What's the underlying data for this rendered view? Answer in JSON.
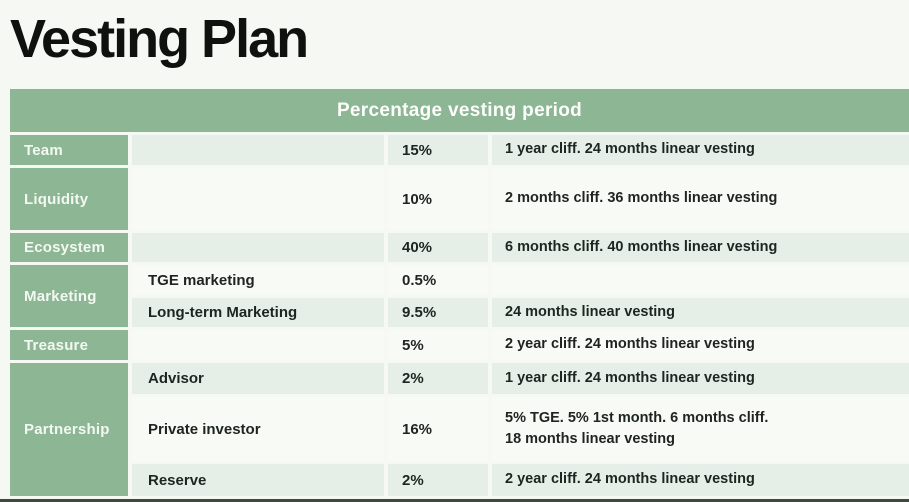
{
  "title": "Vesting Plan",
  "table": {
    "header": "Percentage vesting period",
    "groups": [
      "Team",
      "Liquidity",
      "Ecosystem",
      "Marketing",
      "Treasure",
      "Partnership"
    ],
    "rows": [
      {
        "sub": "",
        "pct": "15%",
        "details": "1 year cliff. 24 months linear vesting"
      },
      {
        "sub": "",
        "pct": "10%",
        "details": "2 months cliff. 36 months linear vesting"
      },
      {
        "sub": "",
        "pct": "40%",
        "details": "6 months cliff. 40 months linear vesting"
      },
      {
        "sub": "TGE marketing",
        "pct": "0.5%",
        "details": ""
      },
      {
        "sub": "Long-term Marketing",
        "pct": "9.5%",
        "details": "24 months linear vesting"
      },
      {
        "sub": "",
        "pct": "5%",
        "details": "2 year cliff. 24 months linear vesting"
      },
      {
        "sub": "Advisor",
        "pct": "2%",
        "details": "1 year cliff. 24 months linear vesting"
      },
      {
        "sub": "Private investor",
        "pct": "16%",
        "details": "5% TGE. 5% 1st month. 6 months cliff.\n18 months linear vesting"
      },
      {
        "sub": "Reserve",
        "pct": "2%",
        "details": "2 year cliff. 24 months linear vesting"
      }
    ]
  },
  "colors": {
    "accent_green": "#8cb694",
    "stripe_light_green": "#e6efe7",
    "stripe_white": "#f7faf5",
    "page_background": "#f6f9f3",
    "text_dark": "#1e2420",
    "header_text": "#fdfefc",
    "bottom_bar": "#3c4a40"
  }
}
